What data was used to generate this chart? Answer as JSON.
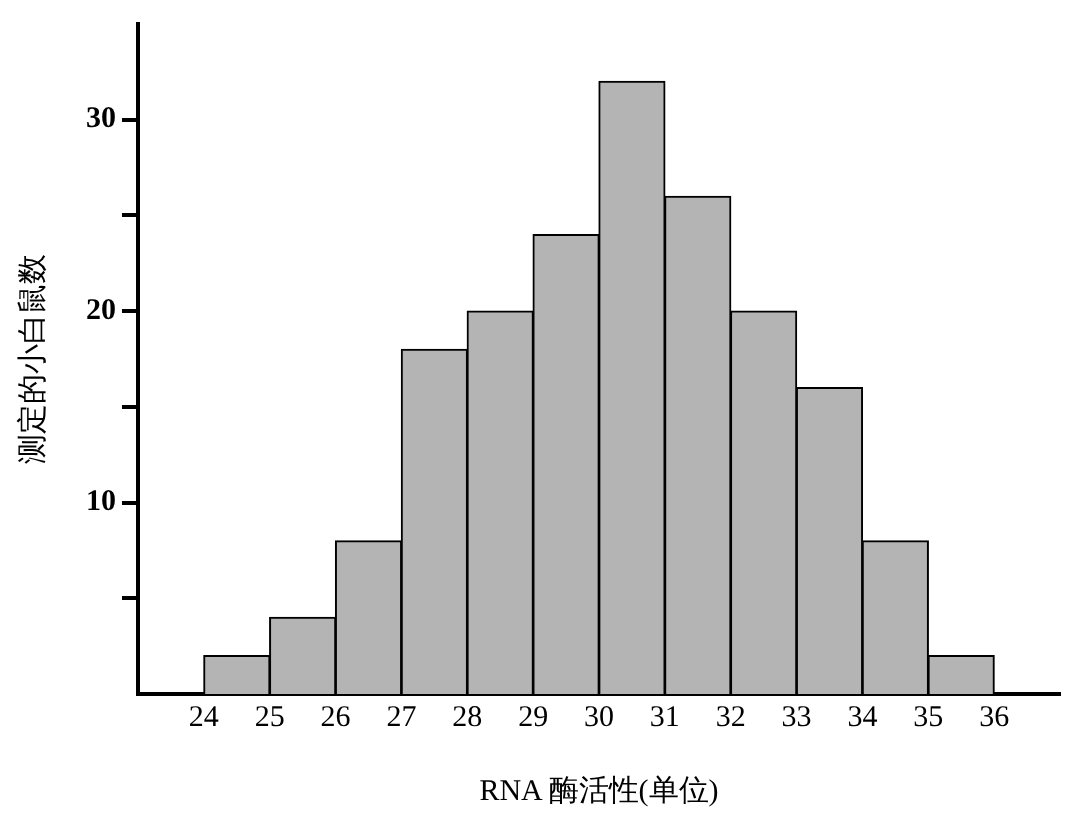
{
  "chart_data": {
    "type": "histogram",
    "xlabel": "RNA 酶活性(单位)",
    "ylabel": "测定的小白鼠数",
    "bins": [
      24,
      25,
      26,
      27,
      28,
      29,
      30,
      31,
      32,
      33,
      34,
      35,
      36
    ],
    "values": [
      2,
      4,
      8,
      18,
      20,
      24,
      32,
      26,
      20,
      16,
      8,
      2
    ],
    "color": "#b4b4b4",
    "xlim": [
      23,
      37
    ],
    "xticks": [
      24,
      25,
      26,
      27,
      28,
      29,
      30,
      31,
      32,
      33,
      34,
      35,
      36
    ],
    "ylim": [
      0,
      35
    ],
    "yticks": [
      {
        "value": 5,
        "label": null
      },
      10,
      {
        "value": 15,
        "label": null
      },
      20,
      {
        "value": 25,
        "label": null
      },
      30
    ],
    "grid": false,
    "legend": false
  }
}
